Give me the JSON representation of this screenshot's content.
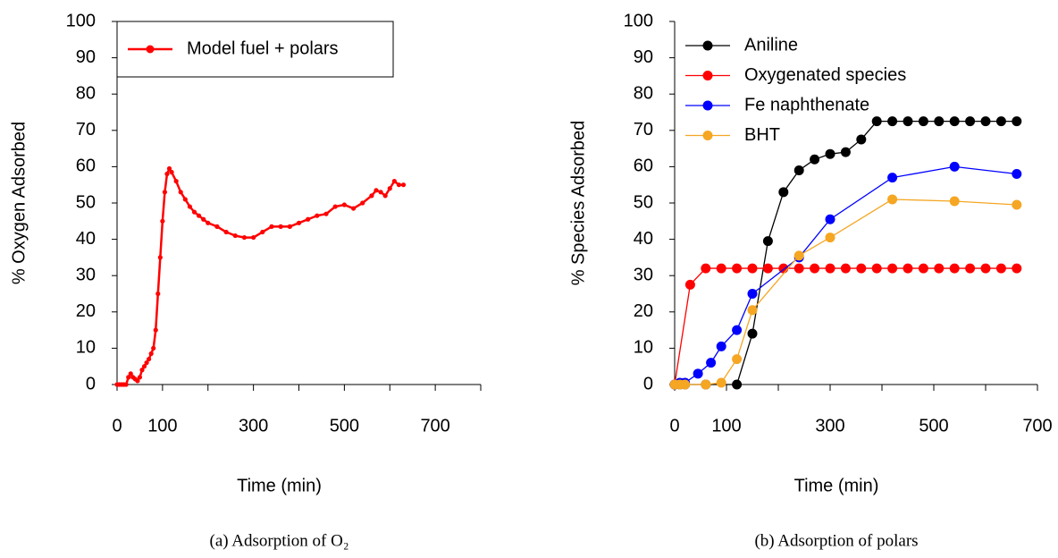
{
  "chart_data": [
    {
      "type": "line",
      "caption": "(a) Adsorption of O₂",
      "xlabel": "Time (min)",
      "ylabel": "% Oxygen Adsorbed",
      "xlim": [
        0,
        800
      ],
      "xticks": [
        0,
        100,
        300,
        500,
        700
      ],
      "xminor": [
        200,
        400,
        600,
        800
      ],
      "ylim": [
        0,
        100
      ],
      "yticks": [
        0,
        10,
        20,
        30,
        40,
        50,
        60,
        70,
        80,
        90,
        100
      ],
      "legend": "upper left",
      "legend_frame": true,
      "series": [
        {
          "name": "Model fuel + polars",
          "color": "#ff0000",
          "x": [
            0,
            5,
            10,
            15,
            20,
            25,
            30,
            35,
            40,
            45,
            50,
            55,
            60,
            65,
            70,
            75,
            80,
            85,
            90,
            95,
            100,
            105,
            110,
            115,
            120,
            130,
            140,
            150,
            160,
            170,
            180,
            190,
            200,
            220,
            240,
            260,
            280,
            300,
            320,
            340,
            360,
            380,
            400,
            420,
            440,
            460,
            480,
            500,
            520,
            540,
            560,
            570,
            580,
            590,
            600,
            610,
            620,
            630
          ],
          "values": [
            0,
            0,
            0,
            0,
            0,
            2,
            3,
            2,
            1.5,
            1,
            2,
            4,
            5,
            6,
            7,
            8.5,
            10,
            15,
            25,
            35,
            45,
            53,
            58,
            59.5,
            58.5,
            56,
            53,
            51,
            49,
            47.5,
            46.5,
            45.5,
            44.5,
            43.5,
            42,
            41,
            40.5,
            40.5,
            42,
            43.5,
            43.5,
            43.5,
            44.5,
            45.5,
            46.5,
            47,
            49,
            49.5,
            48.5,
            50,
            52,
            53.5,
            53,
            52,
            54,
            56,
            55,
            55
          ]
        }
      ]
    },
    {
      "type": "line",
      "caption": "(b) Adsorption of polars",
      "xlabel": "Time (min)",
      "ylabel": "% Species Adsorbed",
      "xlim": [
        0,
        700
      ],
      "xticks": [
        0,
        100,
        300,
        500,
        700
      ],
      "xminor": [
        200,
        400,
        600
      ],
      "ylim": [
        0,
        100
      ],
      "yticks": [
        0,
        10,
        20,
        30,
        40,
        50,
        60,
        70,
        80,
        90,
        100
      ],
      "legend": "upper left",
      "legend_frame": false,
      "series": [
        {
          "name": "Aniline",
          "color": "#000000",
          "x": [
            0,
            10,
            20,
            60,
            120,
            150,
            180,
            210,
            240,
            270,
            300,
            330,
            360,
            390,
            420,
            450,
            480,
            510,
            540,
            570,
            600,
            630,
            660
          ],
          "values": [
            0,
            0,
            0,
            0,
            0,
            14,
            39.5,
            53,
            59,
            62,
            63.5,
            64,
            67.5,
            72.5,
            72.5,
            72.5,
            72.5,
            72.5,
            72.5,
            72.5,
            72.5,
            72.5,
            72.5
          ]
        },
        {
          "name": "Oxygenated species",
          "color": "#ff0000",
          "x": [
            0,
            30,
            60,
            90,
            120,
            150,
            180,
            210,
            240,
            270,
            300,
            330,
            360,
            390,
            420,
            450,
            480,
            510,
            540,
            570,
            600,
            630,
            660
          ],
          "values": [
            0,
            27.5,
            32,
            32,
            32,
            32,
            32,
            32,
            32,
            32,
            32,
            32,
            32,
            32,
            32,
            32,
            32,
            32,
            32,
            32,
            32,
            32,
            32
          ]
        },
        {
          "name": "Fe naphthenate",
          "color": "#0000ff",
          "x": [
            0,
            10,
            20,
            45,
            70,
            90,
            120,
            150,
            240,
            300,
            420,
            540,
            660
          ],
          "values": [
            0,
            0.5,
            0.5,
            3,
            6,
            10.5,
            15,
            25,
            35,
            45.5,
            57,
            60,
            58
          ]
        },
        {
          "name": "BHT",
          "color": "#f5a623",
          "x": [
            0,
            10,
            20,
            60,
            90,
            120,
            150,
            240,
            300,
            420,
            540,
            660
          ],
          "values": [
            0,
            0,
            0,
            0,
            0.5,
            7,
            20.5,
            35.5,
            40.5,
            51,
            50.5,
            49.5
          ]
        }
      ]
    }
  ]
}
